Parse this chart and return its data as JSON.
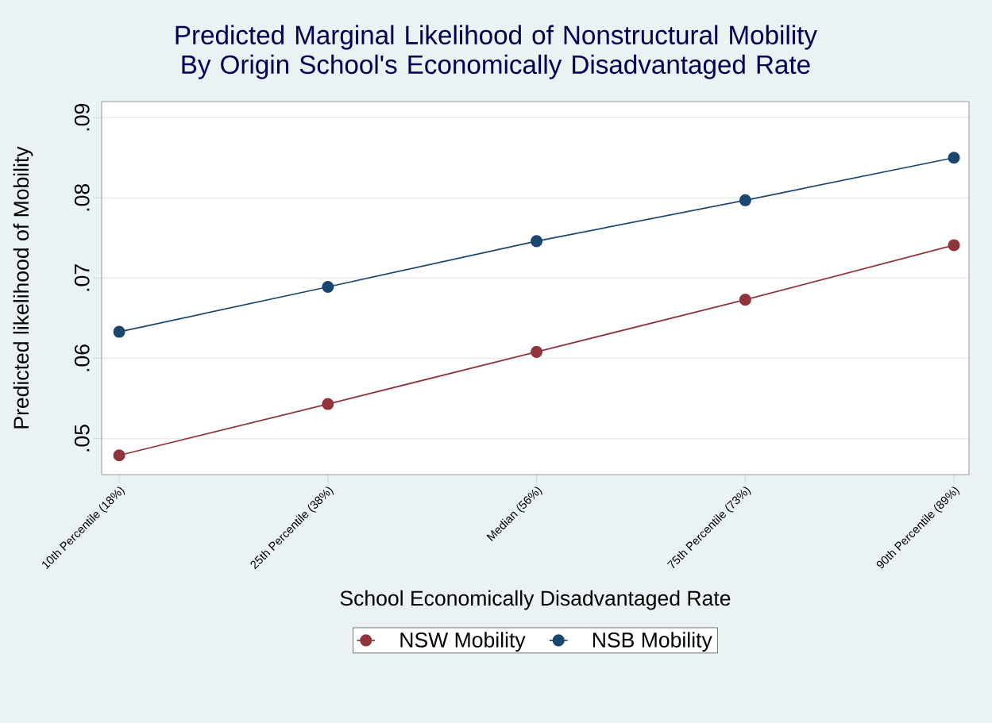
{
  "chart_data": {
    "type": "line",
    "title": "Predicted Marginal Likelihood of Nonstructural Mobility By Origin School's Economically Disadvantaged Rate",
    "xlabel": "School Economically Disadvantaged Rate",
    "ylabel": "Predicted likelihood of Mobility",
    "categories": [
      "10th Percentile (18%)",
      "25th Percentile (38%)",
      "Median (56%)",
      "75th Percentile (73%)",
      "90th Percentile (89%)"
    ],
    "series": [
      {
        "name": "NSW Mobility",
        "color": "#90353b",
        "values": [
          0.0479,
          0.0543,
          0.0608,
          0.0673,
          0.0741
        ]
      },
      {
        "name": "NSB Mobility",
        "color": "#1a476f",
        "values": [
          0.0633,
          0.0689,
          0.0746,
          0.0797,
          0.085
        ]
      }
    ],
    "ylim": [
      0.0455,
      0.092
    ],
    "yticks": [
      {
        "value": 0.05,
        "label": ".05"
      },
      {
        "value": 0.06,
        "label": ".06"
      },
      {
        "value": 0.07,
        "label": ".07"
      },
      {
        "value": 0.08,
        "label": ".08"
      },
      {
        "value": 0.09,
        "label": ".09"
      }
    ],
    "grid": "y",
    "legend": "bottom",
    "marker": "circle",
    "line_style": "solid"
  }
}
